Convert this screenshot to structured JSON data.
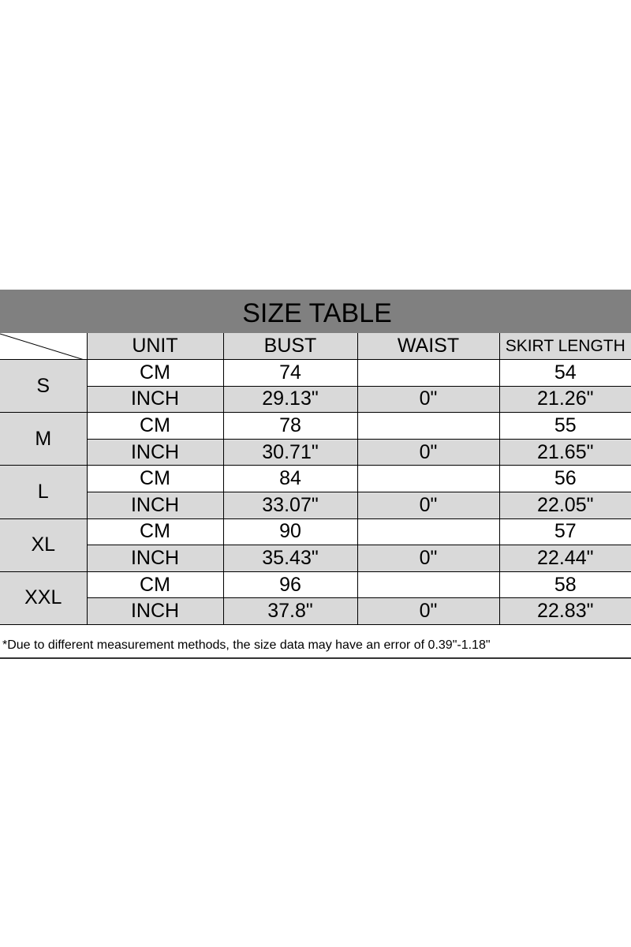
{
  "title": "SIZE TABLE",
  "headers": [
    "UNIT",
    "BUST",
    "WAIST",
    "SKIRT LENGTH"
  ],
  "rows": [
    {
      "size": "S",
      "cm": {
        "unit": "CM",
        "bust": "74",
        "waist": "",
        "skirt": "54"
      },
      "inch": {
        "unit": "INCH",
        "bust": "29.13\"",
        "waist": "0\"",
        "skirt": "21.26\""
      }
    },
    {
      "size": "M",
      "cm": {
        "unit": "CM",
        "bust": "78",
        "waist": "",
        "skirt": "55"
      },
      "inch": {
        "unit": "INCH",
        "bust": "30.71\"",
        "waist": "0\"",
        "skirt": "21.65\""
      }
    },
    {
      "size": "L",
      "cm": {
        "unit": "CM",
        "bust": "84",
        "waist": "",
        "skirt": "56"
      },
      "inch": {
        "unit": "INCH",
        "bust": "33.07\"",
        "waist": "0\"",
        "skirt": "22.05\""
      }
    },
    {
      "size": "XL",
      "cm": {
        "unit": "CM",
        "bust": "90",
        "waist": "",
        "skirt": "57"
      },
      "inch": {
        "unit": "INCH",
        "bust": "35.43\"",
        "waist": "0\"",
        "skirt": "22.44\""
      }
    },
    {
      "size": "XXL",
      "cm": {
        "unit": "CM",
        "bust": "96",
        "waist": "",
        "skirt": "58"
      },
      "inch": {
        "unit": "INCH",
        "bust": "37.8\"",
        "waist": "0\"",
        "skirt": "22.83\""
      }
    }
  ],
  "note": "*Due to different measurement methods, the size data may have an error of 0.39\"-1.18\"",
  "colors": {
    "title_bar": "#808080",
    "shaded_cell": "#d9d9d9"
  }
}
